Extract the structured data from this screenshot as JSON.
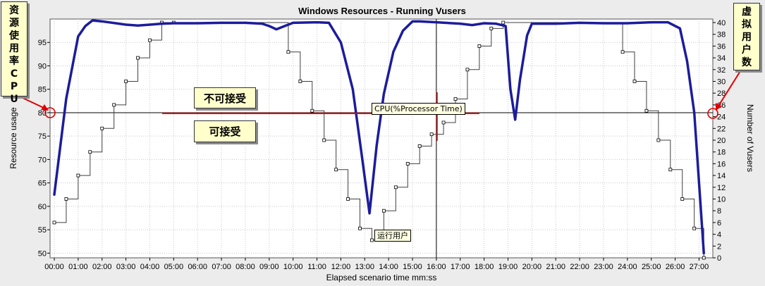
{
  "window": {
    "left_note": [
      "资",
      "源",
      "使",
      "用",
      "率",
      "C",
      "P",
      "U"
    ],
    "right_note": [
      "虚",
      "拟",
      "用",
      "户",
      "数"
    ],
    "unacceptable_label": "不可接受",
    "acceptable_label": "可接受",
    "cpu_tooltip": "CPU(%Processor Time)",
    "vusers_tooltip": "运行用户"
  },
  "colors": {
    "cpu_line": "#1c1c9c",
    "vusers_line": "#404040",
    "threshold_marker": "#e00000",
    "note_fill": "#ffffcc"
  },
  "chart_data": {
    "type": "line",
    "title": "Windows Resources - Running Vusers",
    "xlabel": "Elapsed scenario time mm:ss",
    "ylabel": "Resource usage",
    "y2label": "Number of Vusers",
    "x_ticks": [
      "00:00",
      "01:00",
      "02:00",
      "03:00",
      "04:00",
      "05:00",
      "06:00",
      "07:00",
      "08:00",
      "09:00",
      "10:00",
      "11:00",
      "12:00",
      "13:00",
      "14:00",
      "15:00",
      "16:00",
      "17:00",
      "18:00",
      "19:00",
      "20:00",
      "21:00",
      "22:00",
      "23:00",
      "24:00",
      "25:00",
      "26:00",
      "27:00"
    ],
    "xlim": [
      0,
      27.4
    ],
    "ylim": [
      49,
      100
    ],
    "y2lim": [
      0,
      40.6
    ],
    "y_ticks": [
      50,
      55,
      60,
      65,
      70,
      75,
      80,
      85,
      90,
      95
    ],
    "y2_ticks": [
      0,
      2,
      4,
      6,
      8,
      10,
      12,
      14,
      16,
      18,
      20,
      22,
      24,
      26,
      28,
      30,
      32,
      34,
      36,
      38,
      40
    ],
    "grid": true,
    "threshold_y": 80,
    "threshold_y2": 24,
    "cursor_x": 16,
    "series": [
      {
        "name": "CPU(%Processor Time)",
        "axis": "left",
        "x": [
          0,
          0.5,
          1.0,
          1.3,
          1.6,
          2.0,
          3.0,
          3.5,
          4.0,
          4.5,
          5.0,
          6.0,
          7.0,
          8.0,
          8.7,
          9.0,
          9.3,
          9.7,
          10.0,
          11.0,
          11.5,
          12.0,
          12.5,
          12.9,
          13.2,
          13.5,
          13.8,
          14.2,
          14.6,
          15.0,
          15.3,
          16.0,
          17.0,
          17.5,
          18.0,
          18.5,
          18.9,
          19.1,
          19.3,
          19.5,
          19.8,
          20.0,
          21.0,
          22.0,
          23.0,
          24.0,
          25.0,
          25.7,
          26.2,
          26.5,
          26.8,
          27.2
        ],
        "y": [
          62.5,
          83,
          96.3,
          98.5,
          99.7,
          99.5,
          98.8,
          98.6,
          98.8,
          99.0,
          99.1,
          99.1,
          99.2,
          99.2,
          99.0,
          98.5,
          97.8,
          98.6,
          99.2,
          99.3,
          99.2,
          95,
          85,
          70,
          58.5,
          73,
          84,
          93,
          97.5,
          99.5,
          99.5,
          99.3,
          99.0,
          98.7,
          99.1,
          99.0,
          98.5,
          85,
          78.5,
          87,
          96.5,
          99.0,
          99.0,
          99.2,
          99.1,
          99.1,
          99.3,
          99.3,
          98.0,
          91,
          80,
          50
        ]
      },
      {
        "name": "Running Vusers",
        "axis": "right",
        "x": [
          0,
          0.5,
          1.0,
          1.5,
          2.0,
          2.5,
          3.0,
          3.5,
          4.0,
          4.5,
          5.0,
          9.8,
          10.3,
          10.8,
          11.3,
          11.8,
          12.3,
          12.8,
          13.3,
          13.8,
          14.3,
          14.8,
          15.3,
          15.8,
          16.3,
          16.8,
          17.3,
          17.8,
          18.3,
          18.8,
          23.8,
          24.3,
          24.8,
          25.3,
          25.8,
          26.3,
          26.8,
          27.2
        ],
        "y": [
          6,
          10,
          14,
          18,
          22,
          26,
          30,
          34,
          37,
          40,
          40,
          35,
          30,
          25,
          20,
          15,
          10,
          5,
          3,
          8,
          12,
          16,
          19,
          21,
          23,
          27,
          32,
          36,
          39,
          40,
          35,
          30,
          25,
          20,
          15,
          10,
          5,
          0
        ]
      }
    ]
  }
}
